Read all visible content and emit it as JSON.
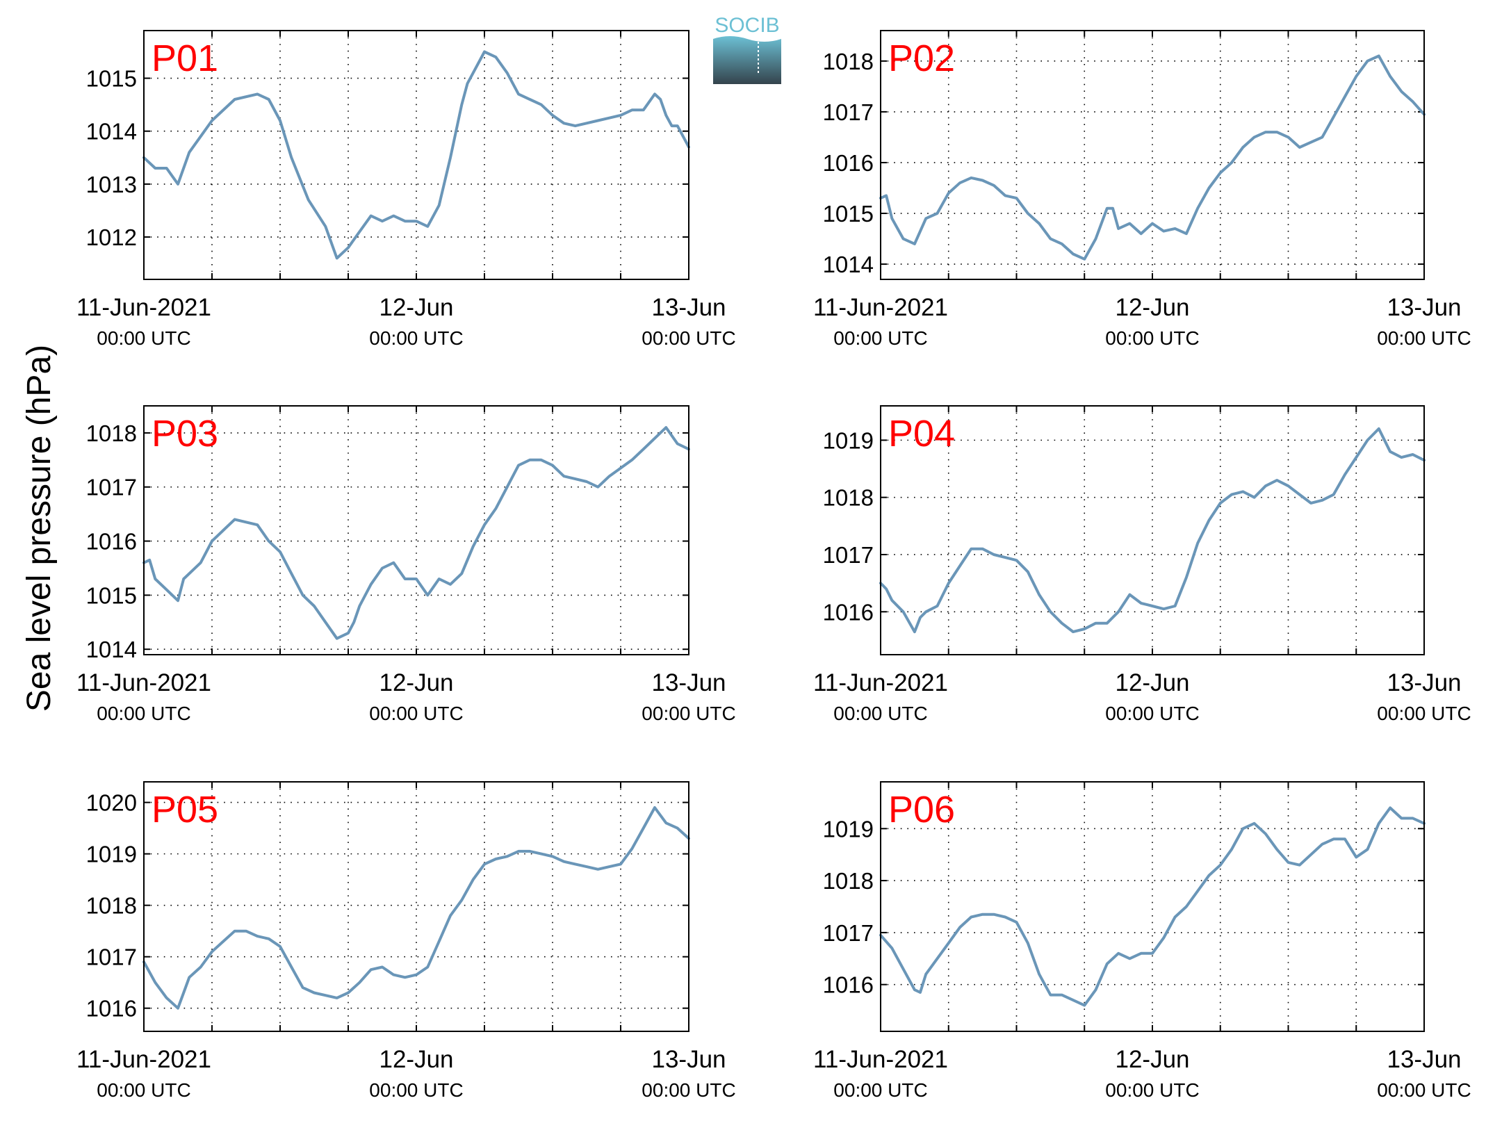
{
  "figure": {
    "ylabel": "Sea level pressure (hPa)",
    "logo_text": "SOCIB",
    "colors": {
      "line": "#6a96b8",
      "panel_label": "#ff0000",
      "logo_top": "#6cc0d4",
      "logo_bottom": "#34434c"
    }
  },
  "chart_data": [
    {
      "type": "line",
      "title": "P01",
      "xlabel": "",
      "ylabel": "Sea level pressure (hPa)",
      "x_ticks": [
        {
          "date": "11-Jun-2021",
          "time": "00:00 UTC"
        },
        {
          "date": "12-Jun",
          "time": "00:00 UTC"
        },
        {
          "date": "13-Jun",
          "time": "00:00 UTC"
        }
      ],
      "xlim_hours": [
        0,
        48
      ],
      "ylim": [
        1011.2,
        1015.9
      ],
      "yticks": [
        1012,
        1013,
        1014,
        1015
      ],
      "grid": true,
      "series": [
        {
          "x_hours": [
            0,
            1,
            2,
            3,
            4,
            5,
            6,
            8,
            10,
            11,
            12,
            13,
            14.5,
            16,
            17,
            18,
            19,
            20,
            21,
            22,
            23,
            24,
            25,
            26,
            27,
            28,
            28.5,
            29,
            30,
            31,
            32,
            33,
            34,
            35,
            36,
            37,
            38,
            39,
            40,
            41,
            42,
            43,
            44,
            45,
            45.5,
            46,
            46.5,
            47,
            48
          ],
          "values": [
            1013.5,
            1013.3,
            1013.3,
            1013.0,
            1013.6,
            1013.9,
            1014.2,
            1014.6,
            1014.7,
            1014.6,
            1014.2,
            1013.5,
            1012.7,
            1012.2,
            1011.6,
            1011.8,
            1012.1,
            1012.4,
            1012.3,
            1012.4,
            1012.3,
            1012.3,
            1012.2,
            1012.6,
            1013.5,
            1014.5,
            1014.9,
            1015.1,
            1015.5,
            1015.4,
            1015.1,
            1014.7,
            1014.6,
            1014.5,
            1014.3,
            1014.15,
            1014.1,
            1014.15,
            1014.2,
            1014.25,
            1014.3,
            1014.4,
            1014.4,
            1014.7,
            1014.6,
            1014.3,
            1014.1,
            1014.1,
            1013.7
          ]
        }
      ]
    },
    {
      "type": "line",
      "title": "P02",
      "xlabel": "",
      "ylabel": "Sea level pressure (hPa)",
      "x_ticks": [
        {
          "date": "11-Jun-2021",
          "time": "00:00 UTC"
        },
        {
          "date": "12-Jun",
          "time": "00:00 UTC"
        },
        {
          "date": "13-Jun",
          "time": "00:00 UTC"
        }
      ],
      "xlim_hours": [
        0,
        48
      ],
      "ylim": [
        1013.7,
        1018.6
      ],
      "yticks": [
        1014,
        1015,
        1016,
        1017,
        1018
      ],
      "grid": true,
      "series": [
        {
          "x_hours": [
            0,
            0.5,
            1,
            2,
            3,
            4,
            5,
            6,
            7,
            8,
            9,
            10,
            11,
            12,
            13,
            14,
            15,
            16,
            17,
            18,
            19,
            20,
            20.5,
            21,
            22,
            23,
            24,
            25,
            26,
            27,
            28,
            29,
            30,
            31,
            32,
            33,
            34,
            35,
            36,
            37,
            38,
            39,
            40,
            41,
            42,
            43,
            44,
            45,
            46,
            47,
            48
          ],
          "values": [
            1015.3,
            1015.35,
            1014.9,
            1014.5,
            1014.4,
            1014.9,
            1015.0,
            1015.4,
            1015.6,
            1015.7,
            1015.65,
            1015.55,
            1015.35,
            1015.3,
            1015.0,
            1014.8,
            1014.5,
            1014.4,
            1014.2,
            1014.1,
            1014.5,
            1015.1,
            1015.1,
            1014.7,
            1014.8,
            1014.6,
            1014.8,
            1014.65,
            1014.7,
            1014.6,
            1015.1,
            1015.5,
            1015.8,
            1016.0,
            1016.3,
            1016.5,
            1016.6,
            1016.6,
            1016.5,
            1016.3,
            1016.4,
            1016.5,
            1016.9,
            1017.3,
            1017.7,
            1018.0,
            1018.1,
            1017.7,
            1017.4,
            1017.2,
            1016.95
          ]
        }
      ]
    },
    {
      "type": "line",
      "title": "P03",
      "xlabel": "",
      "ylabel": "Sea level pressure (hPa)",
      "x_ticks": [
        {
          "date": "11-Jun-2021",
          "time": "00:00 UTC"
        },
        {
          "date": "12-Jun",
          "time": "00:00 UTC"
        },
        {
          "date": "13-Jun",
          "time": "00:00 UTC"
        }
      ],
      "xlim_hours": [
        0,
        48
      ],
      "ylim": [
        1013.9,
        1018.5
      ],
      "yticks": [
        1014,
        1015,
        1016,
        1017,
        1018
      ],
      "grid": true,
      "series": [
        {
          "x_hours": [
            0,
            0.5,
            1,
            2,
            3,
            3.5,
            4,
            5,
            6,
            7,
            8,
            9,
            10,
            11,
            12,
            13,
            14,
            15,
            16,
            17,
            18,
            18.5,
            19,
            20,
            21,
            22,
            23,
            24,
            25,
            26,
            27,
            28,
            29,
            30,
            31,
            32,
            33,
            34,
            35,
            36,
            37,
            38,
            39,
            40,
            41,
            42,
            43,
            44,
            45,
            46,
            47,
            48
          ],
          "values": [
            1015.6,
            1015.65,
            1015.3,
            1015.1,
            1014.9,
            1015.3,
            1015.4,
            1015.6,
            1016.0,
            1016.2,
            1016.4,
            1016.35,
            1016.3,
            1016.0,
            1015.8,
            1015.4,
            1015.0,
            1014.8,
            1014.5,
            1014.2,
            1014.3,
            1014.5,
            1014.8,
            1015.2,
            1015.5,
            1015.6,
            1015.3,
            1015.3,
            1015.0,
            1015.3,
            1015.2,
            1015.4,
            1015.9,
            1016.3,
            1016.6,
            1017.0,
            1017.4,
            1017.5,
            1017.5,
            1017.4,
            1017.2,
            1017.15,
            1017.1,
            1017.0,
            1017.2,
            1017.35,
            1017.5,
            1017.7,
            1017.9,
            1018.1,
            1017.8,
            1017.7
          ]
        }
      ]
    },
    {
      "type": "line",
      "title": "P04",
      "xlabel": "",
      "ylabel": "Sea level pressure (hPa)",
      "x_ticks": [
        {
          "date": "11-Jun-2021",
          "time": "00:00 UTC"
        },
        {
          "date": "12-Jun",
          "time": "00:00 UTC"
        },
        {
          "date": "13-Jun",
          "time": "00:00 UTC"
        }
      ],
      "xlim_hours": [
        0,
        48
      ],
      "ylim": [
        1015.25,
        1019.6
      ],
      "yticks": [
        1016,
        1017,
        1018,
        1019
      ],
      "grid": true,
      "series": [
        {
          "x_hours": [
            0,
            0.5,
            1,
            2,
            3,
            3.5,
            4,
            5,
            6,
            7,
            8,
            9,
            10,
            11,
            12,
            13,
            14,
            15,
            16,
            17,
            18,
            19,
            20,
            21,
            22,
            23,
            24,
            25,
            26,
            27,
            28,
            29,
            30,
            31,
            32,
            33,
            34,
            35,
            36,
            37,
            38,
            39,
            40,
            41,
            42,
            43,
            44,
            45,
            46,
            47,
            48
          ],
          "values": [
            1016.5,
            1016.4,
            1016.2,
            1016.0,
            1015.65,
            1015.9,
            1016.0,
            1016.1,
            1016.5,
            1016.8,
            1017.1,
            1017.1,
            1017.0,
            1016.95,
            1016.9,
            1016.7,
            1016.3,
            1016.0,
            1015.8,
            1015.65,
            1015.7,
            1015.8,
            1015.8,
            1016.0,
            1016.3,
            1016.15,
            1016.1,
            1016.05,
            1016.1,
            1016.6,
            1017.2,
            1017.6,
            1017.9,
            1018.05,
            1018.1,
            1018.0,
            1018.2,
            1018.3,
            1018.2,
            1018.05,
            1017.9,
            1017.95,
            1018.05,
            1018.4,
            1018.7,
            1019.0,
            1019.2,
            1018.8,
            1018.7,
            1018.75,
            1018.65
          ]
        }
      ]
    },
    {
      "type": "line",
      "title": "P05",
      "xlabel": "",
      "ylabel": "Sea level pressure (hPa)",
      "x_ticks": [
        {
          "date": "11-Jun-2021",
          "time": "00:00 UTC"
        },
        {
          "date": "12-Jun",
          "time": "00:00 UTC"
        },
        {
          "date": "13-Jun",
          "time": "00:00 UTC"
        }
      ],
      "xlim_hours": [
        0,
        48
      ],
      "ylim": [
        1015.55,
        1020.4
      ],
      "yticks": [
        1016,
        1017,
        1018,
        1019,
        1020
      ],
      "grid": true,
      "series": [
        {
          "x_hours": [
            0,
            1,
            2,
            3,
            3.5,
            4,
            5,
            6,
            7,
            8,
            9,
            10,
            11,
            12,
            13,
            14,
            15,
            16,
            17,
            18,
            19,
            20,
            21,
            22,
            23,
            24,
            25,
            26,
            27,
            28,
            29,
            30,
            31,
            32,
            33,
            34,
            35,
            36,
            37,
            38,
            39,
            40,
            41,
            42,
            43,
            44,
            45,
            46,
            47,
            48
          ],
          "values": [
            1016.9,
            1016.5,
            1016.2,
            1016.0,
            1016.3,
            1016.6,
            1016.8,
            1017.1,
            1017.3,
            1017.5,
            1017.5,
            1017.4,
            1017.35,
            1017.2,
            1016.8,
            1016.4,
            1016.3,
            1016.25,
            1016.2,
            1016.3,
            1016.5,
            1016.75,
            1016.8,
            1016.65,
            1016.6,
            1016.65,
            1016.8,
            1017.3,
            1017.8,
            1018.1,
            1018.5,
            1018.8,
            1018.9,
            1018.95,
            1019.05,
            1019.05,
            1019.0,
            1018.95,
            1018.85,
            1018.8,
            1018.75,
            1018.7,
            1018.75,
            1018.8,
            1019.1,
            1019.5,
            1019.9,
            1019.6,
            1019.5,
            1019.3
          ]
        }
      ]
    },
    {
      "type": "line",
      "title": "P06",
      "xlabel": "",
      "ylabel": "Sea level pressure (hPa)",
      "x_ticks": [
        {
          "date": "11-Jun-2021",
          "time": "00:00 UTC"
        },
        {
          "date": "12-Jun",
          "time": "00:00 UTC"
        },
        {
          "date": "13-Jun",
          "time": "00:00 UTC"
        }
      ],
      "xlim_hours": [
        0,
        48
      ],
      "ylim": [
        1015.1,
        1019.9
      ],
      "yticks": [
        1016,
        1017,
        1018,
        1019
      ],
      "grid": true,
      "series": [
        {
          "x_hours": [
            0,
            1,
            2,
            3,
            3.5,
            4,
            5,
            6,
            7,
            8,
            9,
            10,
            11,
            12,
            13,
            14,
            15,
            16,
            17,
            18,
            19,
            20,
            21,
            22,
            23,
            24,
            25,
            26,
            27,
            28,
            29,
            30,
            31,
            32,
            33,
            34,
            35,
            36,
            37,
            38,
            39,
            40,
            41,
            42,
            43,
            44,
            45,
            46,
            47,
            48
          ],
          "values": [
            1016.95,
            1016.7,
            1016.3,
            1015.9,
            1015.85,
            1016.2,
            1016.5,
            1016.8,
            1017.1,
            1017.3,
            1017.35,
            1017.35,
            1017.3,
            1017.2,
            1016.8,
            1016.2,
            1015.8,
            1015.8,
            1015.7,
            1015.6,
            1015.9,
            1016.4,
            1016.6,
            1016.5,
            1016.6,
            1016.6,
            1016.9,
            1017.3,
            1017.5,
            1017.8,
            1018.1,
            1018.3,
            1018.6,
            1019.0,
            1019.1,
            1018.9,
            1018.6,
            1018.35,
            1018.3,
            1018.5,
            1018.7,
            1018.8,
            1018.8,
            1018.45,
            1018.6,
            1019.1,
            1019.4,
            1019.2,
            1019.2,
            1019.1
          ]
        }
      ]
    }
  ]
}
